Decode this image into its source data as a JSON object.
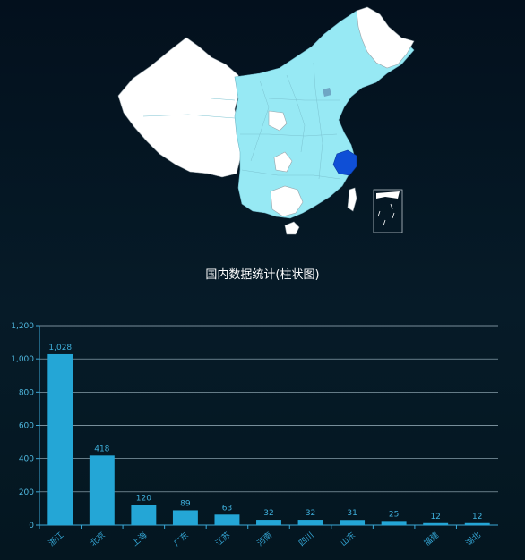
{
  "chart_data": {
    "type": "bar",
    "title": "国内数据统计(柱状图)",
    "categories": [
      "浙江",
      "北京",
      "上海",
      "广东",
      "江苏",
      "河南",
      "四川",
      "山东",
      "",
      "福建",
      "湖北"
    ],
    "values": [
      1028,
      418,
      120,
      89,
      63,
      32,
      32,
      31,
      25,
      12,
      12
    ],
    "ylim": [
      0,
      1200
    ],
    "yticks": [
      "0",
      "200",
      "400",
      "600",
      "800",
      "1,000",
      "1,200"
    ],
    "data_labels": [
      "1,028",
      "418",
      "120",
      "89",
      "63",
      "32",
      "32",
      "31",
      "25",
      "12",
      "12"
    ],
    "xlabel": "",
    "ylabel": "",
    "grid": true
  },
  "map": {
    "highlight_province_color": "#0f4fd6",
    "active_color": "#97e9f4",
    "inactive_color": "#ffffff"
  },
  "colors": {
    "bar": "#24a6d6",
    "grid": "#9fb6c2",
    "axis": "#3aa9d8"
  }
}
